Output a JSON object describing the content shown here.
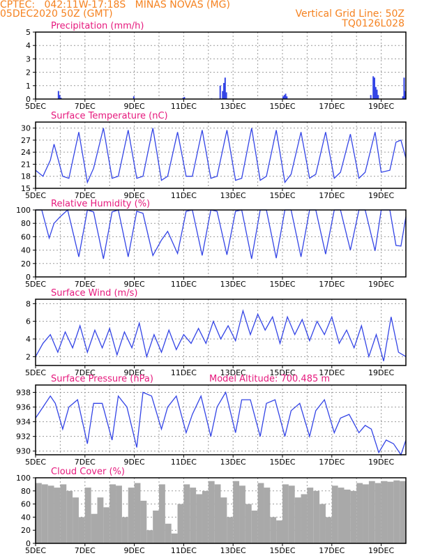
{
  "header": {
    "line1": "CPTEC:   042:11W-17:18S   MINAS NOVAS (MG)",
    "line2": "05DEC2020 50Z (GMT)",
    "grid_note": "Vertical Grid Line: 50Z",
    "code": "TQ0126L028"
  },
  "colors": {
    "header": "#f58220",
    "title": "#e6197d",
    "series": "#3344e6",
    "cloud": "#a9a9a9",
    "grid": "#9a9a9a"
  },
  "x_axis": {
    "range": [
      "05DEC",
      "20DEC"
    ],
    "tick_labels": [
      "5DEC",
      "7DEC",
      "9DEC",
      "11DEC",
      "13DEC",
      "15DEC",
      "17DEC",
      "19DEC"
    ],
    "tick_positions_days": [
      0,
      2,
      4,
      6,
      8,
      10,
      12,
      14
    ]
  },
  "chart_data": [
    {
      "type": "bar",
      "title": "Precipitation (mm/h)",
      "ylim": [
        0,
        5
      ],
      "yticks": [
        "0",
        "1",
        "2",
        "3",
        "4",
        "5"
      ],
      "grid": true,
      "x": [
        0.9,
        0.95,
        1.0,
        3.95,
        5.95,
        6.0,
        7.1,
        7.45,
        7.55,
        7.6,
        7.65,
        7.7,
        10.0,
        10.05,
        10.1,
        10.15,
        13.55,
        13.65,
        13.7,
        13.75,
        13.8,
        13.85,
        14.85,
        14.9,
        14.95
      ],
      "values": [
        0.6,
        0.3,
        0.1,
        0.2,
        0.1,
        0.15,
        0.05,
        1.0,
        0.6,
        1.2,
        1.6,
        0.5,
        0.2,
        0.3,
        0.4,
        0.2,
        0.3,
        1.7,
        1.6,
        0.9,
        0.7,
        0.3,
        0.2,
        1.6,
        0.6
      ]
    },
    {
      "type": "line",
      "title": "Surface Temperature (nC)",
      "ylim": [
        15,
        31.5
      ],
      "yticks": [
        "15",
        "18",
        "21",
        "24",
        "27",
        "30"
      ],
      "grid": true,
      "x": [
        0.0,
        0.3,
        0.6,
        0.75,
        1.1,
        1.35,
        1.75,
        2.1,
        2.35,
        2.75,
        3.1,
        3.35,
        3.75,
        4.1,
        4.35,
        4.75,
        5.1,
        5.35,
        5.75,
        6.1,
        6.35,
        6.75,
        7.1,
        7.35,
        7.75,
        8.1,
        8.35,
        8.75,
        9.1,
        9.35,
        9.75,
        10.1,
        10.35,
        10.75,
        11.1,
        11.35,
        11.75,
        12.1,
        12.35,
        12.75,
        13.1,
        13.35,
        13.75,
        14.0,
        14.35,
        14.6,
        14.8,
        15.0
      ],
      "values": [
        19.5,
        18.0,
        22.0,
        26.0,
        18.0,
        17.5,
        29.0,
        16.5,
        20.0,
        30.0,
        17.5,
        18.0,
        29.5,
        17.5,
        18.0,
        30.0,
        17.0,
        18.0,
        29.0,
        18.0,
        18.0,
        29.5,
        17.5,
        18.0,
        29.5,
        17.0,
        17.5,
        30.0,
        17.0,
        18.0,
        29.5,
        16.5,
        18.5,
        29.0,
        17.5,
        18.5,
        29.0,
        17.5,
        19.0,
        28.5,
        17.5,
        19.0,
        29.0,
        19.0,
        19.5,
        26.5,
        27.0,
        22.5
      ]
    },
    {
      "type": "line",
      "title": "Relative Humidity (%)",
      "ylim": [
        0,
        100
      ],
      "yticks": [
        "0",
        "20",
        "40",
        "60",
        "80",
        "100"
      ],
      "grid": true,
      "x": [
        0.0,
        0.25,
        0.55,
        0.75,
        1.0,
        1.3,
        1.75,
        2.1,
        2.35,
        2.75,
        3.1,
        3.35,
        3.75,
        4.1,
        4.35,
        4.75,
        5.1,
        5.35,
        5.75,
        6.1,
        6.35,
        6.75,
        7.1,
        7.35,
        7.75,
        8.1,
        8.35,
        8.75,
        9.1,
        9.35,
        9.75,
        10.1,
        10.35,
        10.75,
        11.1,
        11.35,
        11.75,
        12.1,
        12.35,
        12.75,
        13.1,
        13.35,
        13.75,
        14.0,
        14.35,
        14.6,
        14.8,
        15.0
      ],
      "values": [
        100,
        100,
        58,
        80,
        90,
        100,
        30,
        100,
        97,
        27,
        97,
        100,
        30,
        98,
        95,
        32,
        55,
        68,
        35,
        98,
        100,
        32,
        100,
        98,
        33,
        98,
        100,
        27,
        100,
        100,
        28,
        100,
        100,
        30,
        100,
        100,
        34,
        100,
        100,
        40,
        100,
        100,
        39,
        100,
        100,
        47,
        46,
        90
      ]
    },
    {
      "type": "line",
      "title": "Surface Wind (m/s)",
      "ylim": [
        1,
        8.5
      ],
      "yticks": [
        "2",
        "4",
        "6",
        "8"
      ],
      "grid": true,
      "x": [
        0.0,
        0.3,
        0.6,
        0.9,
        1.2,
        1.5,
        1.8,
        2.1,
        2.4,
        2.7,
        3.0,
        3.3,
        3.6,
        3.9,
        4.2,
        4.5,
        4.8,
        5.1,
        5.4,
        5.7,
        6.0,
        6.3,
        6.6,
        6.9,
        7.2,
        7.5,
        7.8,
        8.1,
        8.4,
        8.7,
        9.0,
        9.3,
        9.6,
        9.9,
        10.2,
        10.5,
        10.8,
        11.1,
        11.4,
        11.7,
        12.0,
        12.3,
        12.6,
        12.9,
        13.2,
        13.5,
        13.8,
        14.1,
        14.4,
        14.7,
        15.0
      ],
      "values": [
        2.0,
        3.5,
        4.5,
        2.5,
        4.8,
        3.0,
        5.5,
        2.5,
        5.0,
        3.0,
        5.2,
        2.2,
        4.8,
        3.0,
        5.8,
        2.0,
        4.5,
        2.5,
        5.0,
        2.8,
        4.5,
        3.5,
        5.2,
        3.5,
        6.0,
        4.0,
        5.5,
        3.8,
        7.2,
        4.5,
        6.8,
        5.0,
        6.5,
        3.5,
        6.5,
        4.5,
        6.2,
        3.8,
        6.0,
        4.5,
        6.5,
        3.5,
        5.0,
        3.0,
        5.5,
        2.0,
        4.5,
        1.5,
        6.5,
        2.5,
        2.0
      ]
    },
    {
      "type": "line",
      "title": "Surface Pressure (hPa)",
      "annotation": "Model Altitude: 700.485 m",
      "ylim": [
        929.5,
        939
      ],
      "yticks": [
        "930",
        "932",
        "934",
        "936",
        "938"
      ],
      "grid": true,
      "x": [
        0.0,
        0.3,
        0.6,
        0.8,
        1.1,
        1.35,
        1.7,
        2.1,
        2.35,
        2.7,
        3.1,
        3.35,
        3.7,
        4.1,
        4.35,
        4.7,
        5.1,
        5.35,
        5.7,
        6.1,
        6.35,
        6.7,
        7.1,
        7.35,
        7.7,
        8.1,
        8.35,
        8.7,
        9.1,
        9.35,
        9.7,
        10.1,
        10.35,
        10.7,
        11.1,
        11.35,
        11.7,
        12.1,
        12.35,
        12.7,
        13.1,
        13.35,
        13.6,
        13.9,
        14.2,
        14.5,
        14.8,
        15.0
      ],
      "values": [
        934.5,
        936.0,
        937.5,
        936.5,
        933.0,
        936.0,
        937.0,
        931.0,
        936.5,
        936.5,
        931.5,
        937.5,
        936.0,
        930.5,
        938.0,
        937.5,
        933.0,
        936.0,
        937.5,
        932.5,
        935.0,
        937.5,
        932.0,
        936.0,
        938.0,
        932.5,
        937.0,
        937.0,
        932.0,
        936.5,
        937.0,
        932.0,
        935.5,
        936.5,
        932.0,
        935.5,
        937.0,
        932.5,
        934.5,
        935.0,
        932.5,
        933.5,
        933.0,
        929.8,
        931.5,
        931.0,
        929.5,
        931.5
      ]
    },
    {
      "type": "bar",
      "title": "Cloud Cover (%)",
      "ylim": [
        0,
        100
      ],
      "yticks": [
        "0",
        "20",
        "40",
        "60",
        "80",
        "100"
      ],
      "grid": true,
      "x": [
        0.0,
        0.25,
        0.5,
        0.75,
        1.0,
        1.25,
        1.5,
        1.75,
        2.0,
        2.25,
        2.5,
        2.75,
        3.0,
        3.25,
        3.5,
        3.75,
        4.0,
        4.25,
        4.5,
        4.75,
        5.0,
        5.25,
        5.5,
        5.75,
        6.0,
        6.25,
        6.5,
        6.75,
        7.0,
        7.25,
        7.5,
        7.75,
        8.0,
        8.25,
        8.5,
        8.75,
        9.0,
        9.25,
        9.5,
        9.75,
        10.0,
        10.25,
        10.5,
        10.75,
        11.0,
        11.25,
        11.5,
        11.75,
        12.0,
        12.25,
        12.5,
        12.75,
        13.0,
        13.25,
        13.5,
        13.75,
        14.0,
        14.25,
        14.5,
        14.75
      ],
      "values": [
        92,
        90,
        88,
        85,
        90,
        80,
        70,
        40,
        85,
        45,
        70,
        55,
        90,
        88,
        40,
        85,
        92,
        65,
        20,
        50,
        90,
        30,
        15,
        60,
        90,
        85,
        75,
        80,
        95,
        90,
        70,
        40,
        95,
        88,
        60,
        50,
        92,
        85,
        40,
        35,
        90,
        88,
        70,
        75,
        85,
        80,
        60,
        40,
        88,
        85,
        82,
        80,
        92,
        90,
        95,
        92,
        95,
        94,
        96,
        95
      ]
    }
  ]
}
